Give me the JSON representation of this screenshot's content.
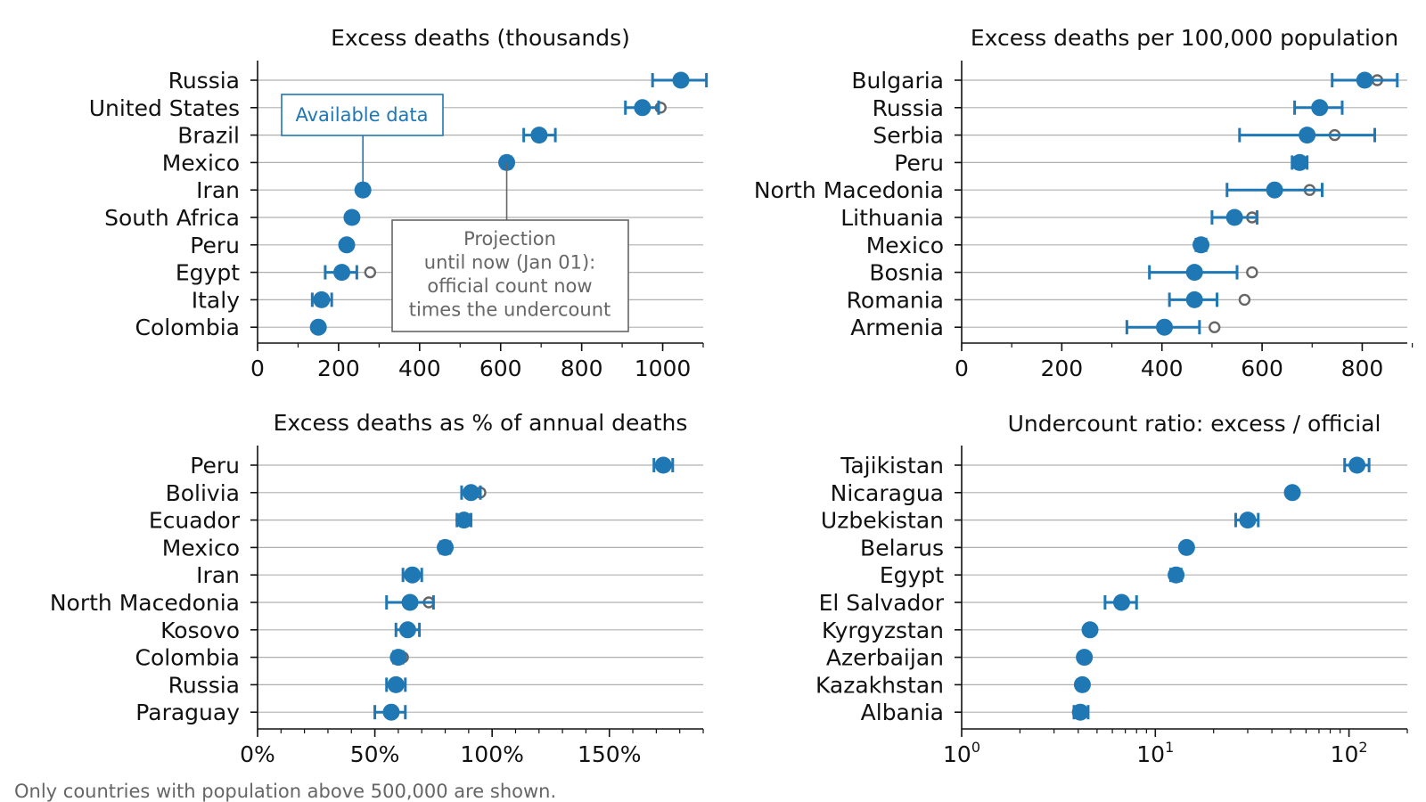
{
  "footnote": "Only countries with population above 500,000 are shown.",
  "colors": {
    "primary": "#1f77b4",
    "projection": "#666666",
    "grid": "#b0b0b0"
  },
  "annotations": {
    "available": "Available data",
    "projection": [
      "Projection",
      "until now (Jan 01):",
      "official count now",
      "times the undercount"
    ]
  },
  "chart_data": [
    {
      "type": "scatter",
      "title": "Excess deaths (thousands)",
      "xscale": "linear",
      "xlim": [
        0,
        1100
      ],
      "xticks": [
        0,
        200,
        400,
        600,
        800,
        1000
      ],
      "xticklabels": [
        "0",
        "200",
        "400",
        "600",
        "800",
        "1000"
      ],
      "minor_step": 100,
      "grid": "horizontal",
      "points": [
        {
          "country": "Russia",
          "value": 1045,
          "lo": 975,
          "hi": 1108,
          "projection": null
        },
        {
          "country": "United States",
          "value": 950,
          "lo": 908,
          "hi": 990,
          "projection": 995
        },
        {
          "country": "Brazil",
          "value": 695,
          "lo": 657,
          "hi": 735,
          "projection": null
        },
        {
          "country": "Mexico",
          "value": 615,
          "lo": 605,
          "hi": 625,
          "projection": null
        },
        {
          "country": "Iran",
          "value": 260,
          "lo": 250,
          "hi": 270,
          "projection": null
        },
        {
          "country": "South Africa",
          "value": 233,
          "lo": 225,
          "hi": 241,
          "projection": null
        },
        {
          "country": "Peru",
          "value": 220,
          "lo": 215,
          "hi": 225,
          "projection": null
        },
        {
          "country": "Egypt",
          "value": 208,
          "lo": 167,
          "hi": 245,
          "projection": 278
        },
        {
          "country": "Italy",
          "value": 158,
          "lo": 135,
          "hi": 183,
          "projection": null
        },
        {
          "country": "Colombia",
          "value": 150,
          "lo": 145,
          "hi": 155,
          "projection": null
        }
      ]
    },
    {
      "type": "scatter",
      "title": "Excess deaths per 100,000 population",
      "xscale": "linear",
      "xlim": [
        0,
        890
      ],
      "xticks": [
        0,
        200,
        400,
        600,
        800
      ],
      "xticklabels": [
        "0",
        "200",
        "400",
        "600",
        "800"
      ],
      "minor_step": 100,
      "grid": "horizontal",
      "points": [
        {
          "country": "Bulgaria",
          "value": 805,
          "lo": 740,
          "hi": 870,
          "projection": 830
        },
        {
          "country": "Russia",
          "value": 715,
          "lo": 665,
          "hi": 760,
          "projection": null
        },
        {
          "country": "Serbia",
          "value": 690,
          "lo": 555,
          "hi": 825,
          "projection": 745
        },
        {
          "country": "Peru",
          "value": 675,
          "lo": 660,
          "hi": 690,
          "projection": null
        },
        {
          "country": "North Macedonia",
          "value": 625,
          "lo": 530,
          "hi": 720,
          "projection": 695
        },
        {
          "country": "Lithuania",
          "value": 545,
          "lo": 500,
          "hi": 590,
          "projection": 580
        },
        {
          "country": "Mexico",
          "value": 478,
          "lo": 468,
          "hi": 488,
          "projection": null
        },
        {
          "country": "Bosnia",
          "value": 465,
          "lo": 375,
          "hi": 550,
          "projection": 580
        },
        {
          "country": "Romania",
          "value": 465,
          "lo": 415,
          "hi": 510,
          "projection": 565
        },
        {
          "country": "Armenia",
          "value": 405,
          "lo": 330,
          "hi": 475,
          "projection": 505
        }
      ]
    },
    {
      "type": "scatter",
      "title": "Excess deaths as % of annual deaths",
      "xscale": "linear",
      "xlim": [
        0,
        1.9
      ],
      "xticks": [
        0,
        0.5,
        1.0,
        1.5
      ],
      "xticklabels": [
        "0%",
        "50%",
        "100%",
        "150%"
      ],
      "minor_step": 0.1,
      "grid": "horizontal",
      "points": [
        {
          "country": "Peru",
          "value": 1.73,
          "lo": 1.69,
          "hi": 1.77,
          "projection": null
        },
        {
          "country": "Bolivia",
          "value": 0.91,
          "lo": 0.87,
          "hi": 0.95,
          "projection": 0.95
        },
        {
          "country": "Ecuador",
          "value": 0.88,
          "lo": 0.85,
          "hi": 0.91,
          "projection": null
        },
        {
          "country": "Mexico",
          "value": 0.8,
          "lo": 0.78,
          "hi": 0.82,
          "projection": null
        },
        {
          "country": "Iran",
          "value": 0.66,
          "lo": 0.62,
          "hi": 0.7,
          "projection": null
        },
        {
          "country": "North Macedonia",
          "value": 0.65,
          "lo": 0.55,
          "hi": 0.75,
          "projection": 0.73
        },
        {
          "country": "Kosovo",
          "value": 0.64,
          "lo": 0.59,
          "hi": 0.69,
          "projection": null
        },
        {
          "country": "Colombia",
          "value": 0.6,
          "lo": 0.58,
          "hi": 0.62,
          "projection": 0.62
        },
        {
          "country": "Russia",
          "value": 0.59,
          "lo": 0.55,
          "hi": 0.63,
          "projection": null
        },
        {
          "country": "Paraguay",
          "value": 0.57,
          "lo": 0.5,
          "hi": 0.63,
          "projection": null
        }
      ]
    },
    {
      "type": "scatter",
      "title": "Undercount ratio: excess / official",
      "xscale": "log",
      "xlim": [
        1,
        200
      ],
      "xticks": [
        1,
        10,
        100
      ],
      "xticklabels": [
        [
          "10",
          "0"
        ],
        [
          "10",
          "1"
        ],
        [
          "10",
          "2"
        ]
      ],
      "grid": "horizontal",
      "points": [
        {
          "country": "Tajikistan",
          "value": 110,
          "lo": 95,
          "hi": 127,
          "projection": null
        },
        {
          "country": "Nicaragua",
          "value": 51,
          "lo": 50,
          "hi": 52,
          "projection": null
        },
        {
          "country": "Uzbekistan",
          "value": 30,
          "lo": 26,
          "hi": 34,
          "projection": null
        },
        {
          "country": "Belarus",
          "value": 14.5,
          "lo": 14,
          "hi": 15,
          "projection": null
        },
        {
          "country": "Egypt",
          "value": 12.8,
          "lo": 12,
          "hi": 13.6,
          "projection": null
        },
        {
          "country": "El Salvador",
          "value": 6.7,
          "lo": 5.5,
          "hi": 8.0,
          "projection": null
        },
        {
          "country": "Kyrgyzstan",
          "value": 4.6,
          "lo": 4.4,
          "hi": 4.8,
          "projection": null
        },
        {
          "country": "Azerbaijan",
          "value": 4.3,
          "lo": 4.15,
          "hi": 4.45,
          "projection": null
        },
        {
          "country": "Kazakhstan",
          "value": 4.2,
          "lo": 4.1,
          "hi": 4.3,
          "projection": null
        },
        {
          "country": "Albania",
          "value": 4.1,
          "lo": 3.8,
          "hi": 4.5,
          "projection": null
        }
      ]
    }
  ]
}
